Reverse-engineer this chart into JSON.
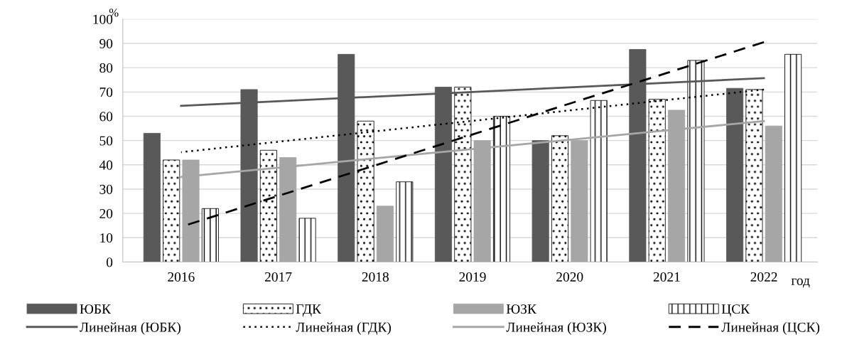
{
  "chart_data": {
    "type": "bar",
    "ylabel": "%",
    "xlabel": "год",
    "categories": [
      "2016",
      "2017",
      "2018",
      "2019",
      "2020",
      "2021",
      "2022"
    ],
    "ylim": [
      0,
      100
    ],
    "yticks": [
      0,
      10,
      20,
      30,
      40,
      50,
      60,
      70,
      80,
      90,
      100
    ],
    "grid": "y",
    "legend": "bottom",
    "marker": "none",
    "series": [
      {
        "name": "ЮБК",
        "color": "#595959",
        "values": [
          53,
          71,
          85.5,
          72,
          50,
          87.5,
          71.5
        ]
      },
      {
        "name": "ГДК",
        "color": "#000000",
        "values": [
          42,
          46,
          58,
          72,
          52,
          67,
          71
        ]
      },
      {
        "name": "ЮЗК",
        "color": "#a6a6a6",
        "values": [
          42,
          43,
          23,
          50,
          50,
          62.5,
          56
        ]
      },
      {
        "name": "ЦСК",
        "color": "#000000",
        "values": [
          22,
          18,
          33,
          60,
          66.5,
          83,
          85.5
        ]
      },
      {
        "name": "Линейная (ЮБК)",
        "type": "line",
        "color": "#595959",
        "line_style": "solid",
        "values": [
          64.3,
          66.2,
          68.1,
          70.0,
          71.9,
          73.8,
          75.7
        ]
      },
      {
        "name": "Линейная (ГДК)",
        "type": "line",
        "color": "#000000",
        "line_style": "dotted",
        "values": [
          45.2,
          49.5,
          53.8,
          58.1,
          62.4,
          66.7,
          71
        ]
      },
      {
        "name": "Линейная (ЮЗК)",
        "type": "line",
        "color": "#a6a6a6",
        "line_style": "solid",
        "values": [
          35,
          38.8,
          42.7,
          46.5,
          50.3,
          54.2,
          58
        ]
      },
      {
        "name": "Линейная (ЦСК)",
        "type": "line",
        "color": "#000000",
        "line_style": "dashed",
        "values": [
          14.5,
          27.2,
          39.8,
          52.5,
          65.2,
          77.8,
          90.5
        ]
      }
    ]
  }
}
